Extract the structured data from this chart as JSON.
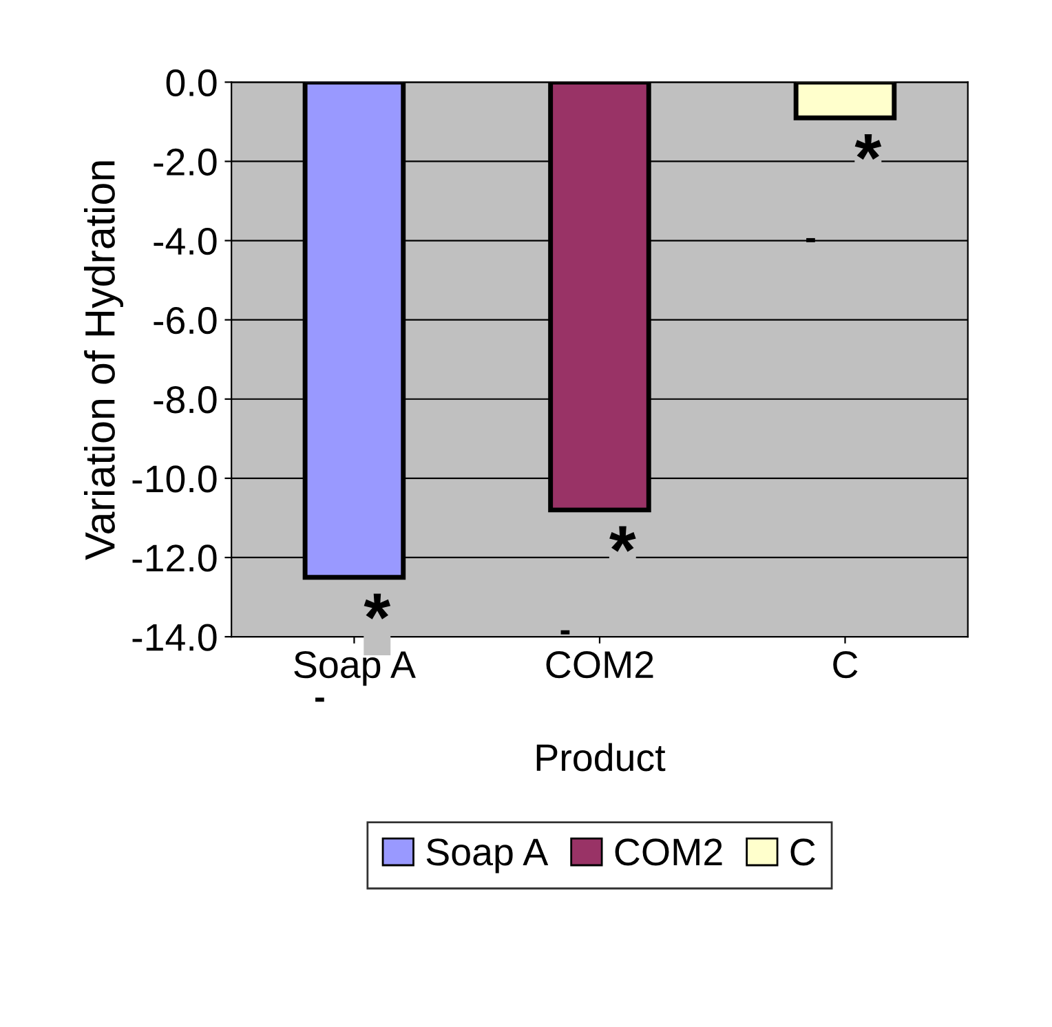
{
  "chart_data": {
    "type": "bar",
    "categories": [
      "Soap A",
      "COM2",
      "C"
    ],
    "series": [
      {
        "name": "Soap A",
        "color": "#9999ff",
        "values": [
          -12.5,
          null,
          null
        ]
      },
      {
        "name": "COM2",
        "color": "#993366",
        "values": [
          null,
          -10.8,
          null
        ]
      },
      {
        "name": "C",
        "color": "#ffffcc",
        "values": [
          null,
          null,
          -0.9
        ]
      }
    ],
    "xlabel": "Product",
    "ylabel": "Variation of Hydration",
    "ylim": [
      -14,
      0
    ],
    "yticks": [
      {
        "value": 0,
        "label": "0.0"
      },
      {
        "value": -2,
        "label": "-2.0"
      },
      {
        "value": -4,
        "label": "-4.0"
      },
      {
        "value": -6,
        "label": "-6.0"
      },
      {
        "value": -8,
        "label": "-8.0"
      },
      {
        "value": -10,
        "label": "-10.0"
      },
      {
        "value": -12,
        "label": "-12.0"
      },
      {
        "value": -14,
        "label": "-14.0"
      }
    ],
    "annotations": [
      "*",
      "*",
      "*",
      "-",
      "-",
      "-"
    ],
    "grid": "y",
    "legend": "bottom"
  }
}
